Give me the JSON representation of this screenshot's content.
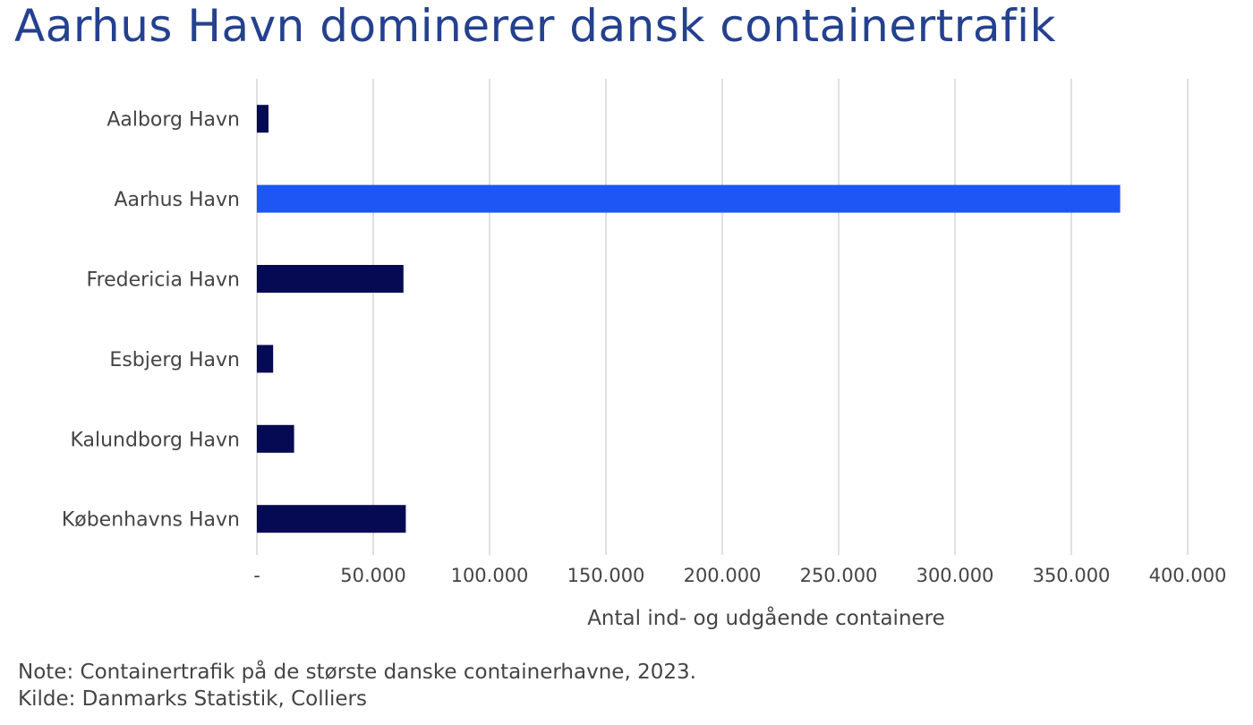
{
  "title": "Aarhus Havn dominerer dansk containertrafik",
  "note": {
    "line1": "Note: Containertrafik på de største danske containerhavne, 2023.",
    "line2": "Kilde: Danmarks Statistik, Colliers"
  },
  "colors": {
    "title": "#24418f",
    "bar_default": "#050a52",
    "bar_highlight": "#1e56f5",
    "grid": "#cccccc",
    "text": "#444444"
  },
  "chart_data": {
    "type": "bar",
    "orientation": "horizontal",
    "categories": [
      "Aalborg Havn",
      "Aarhus Havn",
      "Fredericia Havn",
      "Esbjerg Havn",
      "Kalundborg Havn",
      "Københavns Havn"
    ],
    "values": [
      5000,
      371000,
      63000,
      7000,
      16000,
      64000
    ],
    "highlight": "Aarhus Havn",
    "xlabel": "Antal ind- og udgående containere",
    "ylabel": "",
    "xlim": [
      0,
      400000
    ],
    "xticks": [
      0,
      50000,
      100000,
      150000,
      200000,
      250000,
      300000,
      350000,
      400000
    ],
    "xtick_labels": [
      "-",
      "50.000",
      "100.000",
      "150.000",
      "200.000",
      "250.000",
      "300.000",
      "350.000",
      "400.000"
    ],
    "grid": true,
    "legend": "none"
  }
}
